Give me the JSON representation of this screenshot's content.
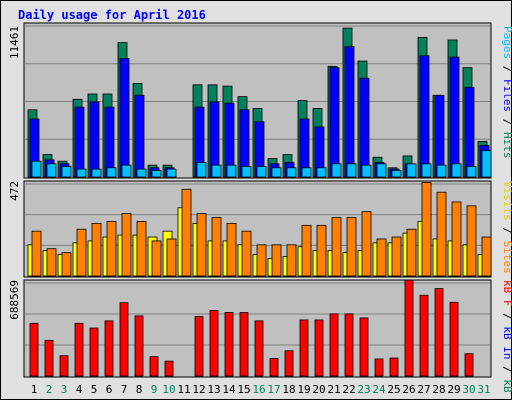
{
  "chart_data": {
    "type": "bar",
    "title": "Daily usage for April 2016",
    "days": [
      "1",
      "2",
      "3",
      "4",
      "5",
      "6",
      "7",
      "8",
      "9",
      "10",
      "11",
      "12",
      "13",
      "14",
      "15",
      "16",
      "17",
      "18",
      "19",
      "20",
      "21",
      "22",
      "23",
      "24",
      "25",
      "26",
      "27",
      "28",
      "29",
      "30",
      "31"
    ],
    "weekend_days": [
      "2",
      "3",
      "9",
      "10",
      "16",
      "17",
      "23",
      "24",
      "30",
      "31"
    ],
    "panels": [
      {
        "id": "top",
        "max_label": "11461",
        "ymax": 11461,
        "legend": [
          {
            "text": "Pages",
            "color": "#00c0ff"
          },
          {
            "text": " / ",
            "color": "#000000"
          },
          {
            "text": "Files",
            "color": "#0000ff"
          },
          {
            "text": " / ",
            "color": "#000000"
          },
          {
            "text": "Hits",
            "color": "#00805c"
          }
        ],
        "series": [
          {
            "name": "Hits",
            "color": "#00805c",
            "values": [
              5100,
              1700,
              1200,
              5900,
              6300,
              6300,
              10200,
              7100,
              900,
              900,
              0,
              7000,
              7000,
              6900,
              6100,
              5200,
              1400,
              1700,
              5800,
              5200,
              8400,
              11300,
              8800,
              1500,
              700,
              1600,
              10600,
              6200,
              10400,
              8300,
              2700
            ]
          },
          {
            "name": "Files",
            "color": "#0000ff",
            "values": [
              4400,
              1300,
              1000,
              5300,
              5700,
              5300,
              9000,
              6200,
              700,
              700,
              0,
              5300,
              5700,
              5600,
              5100,
              4200,
              1000,
              1100,
              4400,
              3800,
              8300,
              9900,
              7500,
              1100,
              600,
              1000,
              9200,
              6200,
              9100,
              6800,
              2400
            ]
          },
          {
            "name": "Pages",
            "color": "#00c0ff",
            "values": [
              1200,
              1000,
              800,
              600,
              600,
              700,
              900,
              600,
              500,
              600,
              0,
              1100,
              900,
              900,
              800,
              800,
              700,
              700,
              700,
              700,
              1000,
              1000,
              900,
              1000,
              500,
              1000,
              1000,
              900,
              1000,
              800,
              2000
            ]
          }
        ]
      },
      {
        "id": "mid",
        "max_label": "472",
        "ymax": 472,
        "legend": [
          {
            "text": "Visits",
            "color": "#e0d000"
          },
          {
            "text": " / ",
            "color": "#000000"
          },
          {
            "text": "Sites",
            "color": "#ff8000"
          }
        ],
        "series": [
          {
            "name": "Visits",
            "color": "#ffff00",
            "values": [
              160,
              130,
              110,
              170,
              180,
              200,
              210,
              210,
              200,
              230,
              350,
              270,
              180,
              180,
              160,
              110,
              90,
              100,
              150,
              130,
              130,
              120,
              130,
              170,
              170,
              220,
              280,
              190,
              180,
              160,
              110
            ]
          },
          {
            "name": "Sites",
            "color": "#ff8000",
            "values": [
              230,
              140,
              120,
              240,
              270,
              280,
              320,
              280,
              180,
              190,
              445,
              320,
              300,
              270,
              230,
              160,
              160,
              160,
              260,
              260,
              300,
              300,
              330,
              190,
              200,
              240,
              480,
              430,
              380,
              360,
              200
            ]
          }
        ]
      },
      {
        "id": "bot",
        "max_label": "688569",
        "ymax": 688569,
        "legend": [
          {
            "text": "kB F",
            "color": "#ff0000"
          },
          {
            "text": " / ",
            "color": "#000000"
          },
          {
            "text": "kB In",
            "color": "#0000ff"
          },
          {
            "text": " / ",
            "color": "#000000"
          },
          {
            "text": "kB Out",
            "color": "#00805c"
          }
        ],
        "series": [
          {
            "name": "kB F",
            "color": "#ff0000",
            "values": [
              390000,
              264000,
              150000,
              390000,
              355000,
              408000,
              543000,
              445000,
              143000,
              110000,
              0,
              440000,
              485000,
              470000,
              470000,
              408000,
              130000,
              187000,
              415000,
              415000,
              460000,
              460000,
              430000,
              126000,
              133000,
              710000,
              598000,
              647000,
              546000,
              165000,
              0
            ]
          }
        ]
      }
    ]
  },
  "colors": {
    "panel_bg": "#c0c0c0",
    "outer_bg": "#e0e0e0",
    "title": "#0000ff",
    "weekday_label": "#000000",
    "weekend_label": "#00805c",
    "gridline": "#808080"
  }
}
